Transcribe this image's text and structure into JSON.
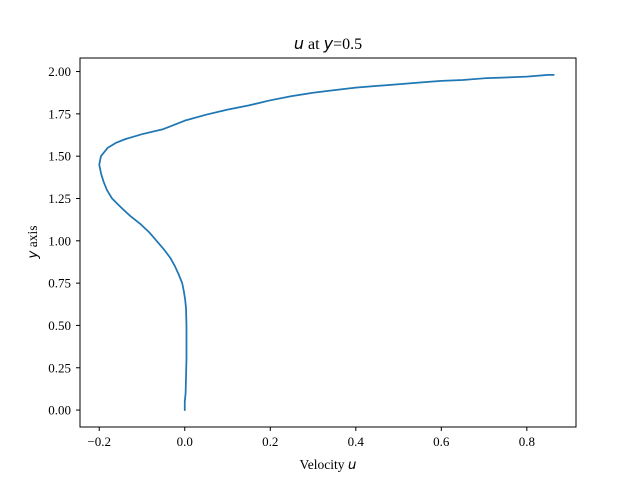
{
  "chart_data": {
    "type": "line",
    "title": {
      "var": "u",
      "middle": " at ",
      "var2": "y",
      "suffix": "=0.5"
    },
    "xlabel": {
      "prefix": "Velocity ",
      "var": "u"
    },
    "ylabel": {
      "var": "y",
      "suffix": " axis"
    },
    "xlim": [
      -0.245,
      0.915
    ],
    "ylim": [
      -0.1,
      2.08
    ],
    "x_ticks": [
      -0.2,
      0.0,
      0.2,
      0.4,
      0.6,
      0.8
    ],
    "x_tick_labels": [
      "−0.2",
      "0.0",
      "0.2",
      "0.4",
      "0.6",
      "0.8"
    ],
    "y_ticks": [
      0.0,
      0.25,
      0.5,
      0.75,
      1.0,
      1.25,
      1.5,
      1.75,
      2.0
    ],
    "y_tick_labels": [
      "0.00",
      "0.25",
      "0.50",
      "0.75",
      "1.00",
      "1.25",
      "1.50",
      "1.75",
      "2.00"
    ],
    "grid": false,
    "series": [
      {
        "color": "#1f77b4",
        "points": [
          [
            0.0,
            0.0
          ],
          [
            0.0,
            0.05
          ],
          [
            0.002,
            0.1
          ],
          [
            0.003,
            0.2
          ],
          [
            0.004,
            0.3
          ],
          [
            0.004,
            0.4
          ],
          [
            0.004,
            0.5
          ],
          [
            0.003,
            0.6
          ],
          [
            0.001,
            0.65
          ],
          [
            -0.002,
            0.7
          ],
          [
            -0.006,
            0.75
          ],
          [
            -0.014,
            0.8
          ],
          [
            -0.023,
            0.85
          ],
          [
            -0.034,
            0.9
          ],
          [
            -0.049,
            0.95
          ],
          [
            -0.066,
            1.0
          ],
          [
            -0.083,
            1.05
          ],
          [
            -0.104,
            1.1
          ],
          [
            -0.129,
            1.15
          ],
          [
            -0.15,
            1.2
          ],
          [
            -0.17,
            1.25
          ],
          [
            -0.182,
            1.3
          ],
          [
            -0.19,
            1.35
          ],
          [
            -0.196,
            1.4
          ],
          [
            -0.2,
            1.45
          ],
          [
            -0.196,
            1.5
          ],
          [
            -0.18,
            1.55
          ],
          [
            -0.16,
            1.58
          ],
          [
            -0.14,
            1.6
          ],
          [
            -0.1,
            1.63
          ],
          [
            -0.05,
            1.66
          ],
          [
            0.0,
            1.71
          ],
          [
            0.05,
            1.745
          ],
          [
            0.1,
            1.775
          ],
          [
            0.15,
            1.8
          ],
          [
            0.2,
            1.83
          ],
          [
            0.25,
            1.855
          ],
          [
            0.3,
            1.875
          ],
          [
            0.35,
            1.89
          ],
          [
            0.4,
            1.905
          ],
          [
            0.45,
            1.915
          ],
          [
            0.5,
            1.925
          ],
          [
            0.55,
            1.935
          ],
          [
            0.6,
            1.945
          ],
          [
            0.65,
            1.95
          ],
          [
            0.7,
            1.96
          ],
          [
            0.75,
            1.965
          ],
          [
            0.8,
            1.97
          ],
          [
            0.85,
            1.98
          ],
          [
            0.863,
            1.98
          ]
        ]
      }
    ]
  }
}
